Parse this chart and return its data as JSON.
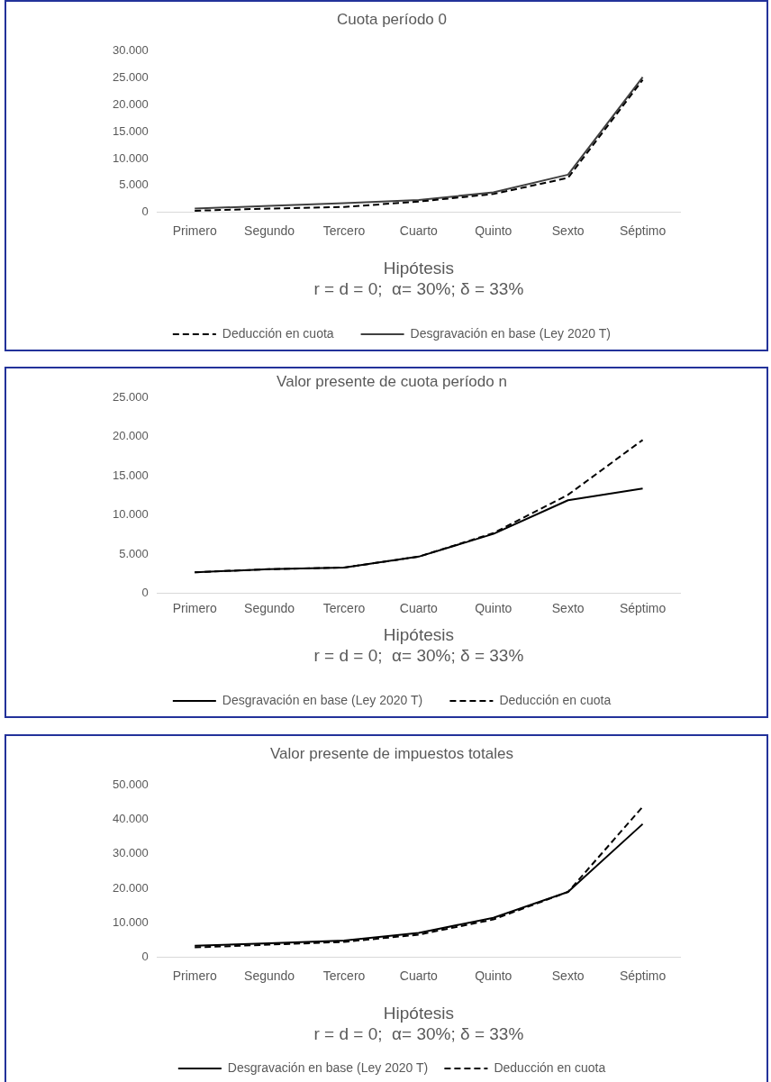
{
  "chart_data": [
    {
      "type": "line",
      "title": "Cuota período 0",
      "xlabel": "Hipótesis\nr = d = 0;  α= 30%; δ = 33%",
      "categories": [
        "Primero",
        "Segundo",
        "Tercero",
        "Cuarto",
        "Quinto",
        "Sexto",
        "Séptimo"
      ],
      "series": [
        {
          "name": "Deducción en cuota",
          "color": "#000000",
          "line_style": "dashed",
          "values": [
            300,
            700,
            1000,
            2000,
            3400,
            6400,
            24600
          ]
        },
        {
          "name": "Desgravación en base (Ley 2020 T)",
          "color": "#404040",
          "line_style": "solid",
          "values": [
            700,
            1200,
            1700,
            2300,
            3700,
            7000,
            25100
          ]
        }
      ],
      "ylim": [
        0,
        30000
      ],
      "yticks": [
        {
          "value": 0,
          "label": "0"
        },
        {
          "value": 5000,
          "label": "5.000"
        },
        {
          "value": 10000,
          "label": "10.000"
        },
        {
          "value": 15000,
          "label": "15.000"
        },
        {
          "value": 20000,
          "label": "20.000"
        },
        {
          "value": 25000,
          "label": "25.000"
        },
        {
          "value": 30000,
          "label": "30.000"
        }
      ],
      "legend": "bottom",
      "marker": "none"
    },
    {
      "type": "line",
      "title": "Valor presente de cuota período n",
      "xlabel": "Hipótesis\nr = d = 0;  α= 30%; δ = 33%",
      "categories": [
        "Primero",
        "Segundo",
        "Tercero",
        "Cuarto",
        "Quinto",
        "Sexto",
        "Séptimo"
      ],
      "series": [
        {
          "name": "Desgravación en base (Ley 2020 T)",
          "color": "#000000",
          "line_style": "solid",
          "values": [
            2700,
            3100,
            3300,
            4700,
            7600,
            11900,
            13400
          ]
        },
        {
          "name": "Deducción en cuota",
          "color": "#000000",
          "line_style": "dashed",
          "values": [
            2700,
            3100,
            3300,
            4700,
            7700,
            12600,
            19600
          ]
        }
      ],
      "ylim": [
        0,
        25000
      ],
      "yticks": [
        {
          "value": 0,
          "label": "0"
        },
        {
          "value": 5000,
          "label": "5.000"
        },
        {
          "value": 10000,
          "label": "10.000"
        },
        {
          "value": 15000,
          "label": "15.000"
        },
        {
          "value": 20000,
          "label": "20.000"
        },
        {
          "value": 25000,
          "label": "25.000"
        }
      ],
      "legend": "bottom",
      "marker": "none"
    },
    {
      "type": "line",
      "title": "Valor presente de impuestos totales",
      "xlabel": "Hipótesis\nr = d = 0;  α= 30%; δ = 33%",
      "categories": [
        "Primero",
        "Segundo",
        "Tercero",
        "Cuarto",
        "Quinto",
        "Sexto",
        "Séptimo"
      ],
      "series": [
        {
          "name": "Desgravación en base (Ley 2020 T)",
          "color": "#000000",
          "line_style": "solid",
          "values": [
            3400,
            4100,
            4900,
            7100,
            11500,
            19000,
            38700
          ]
        },
        {
          "name": "Deducción en cuota",
          "color": "#000000",
          "line_style": "dashed",
          "values": [
            2900,
            3700,
            4500,
            6600,
            11000,
            19000,
            43700
          ]
        }
      ],
      "ylim": [
        0,
        50000
      ],
      "yticks": [
        {
          "value": 0,
          "label": "0"
        },
        {
          "value": 10000,
          "label": "10.000"
        },
        {
          "value": 20000,
          "label": "20.000"
        },
        {
          "value": 30000,
          "label": "30.000"
        },
        {
          "value": 40000,
          "label": "40.000"
        },
        {
          "value": 50000,
          "label": "50.000"
        }
      ],
      "legend": "bottom",
      "marker": "none"
    }
  ]
}
